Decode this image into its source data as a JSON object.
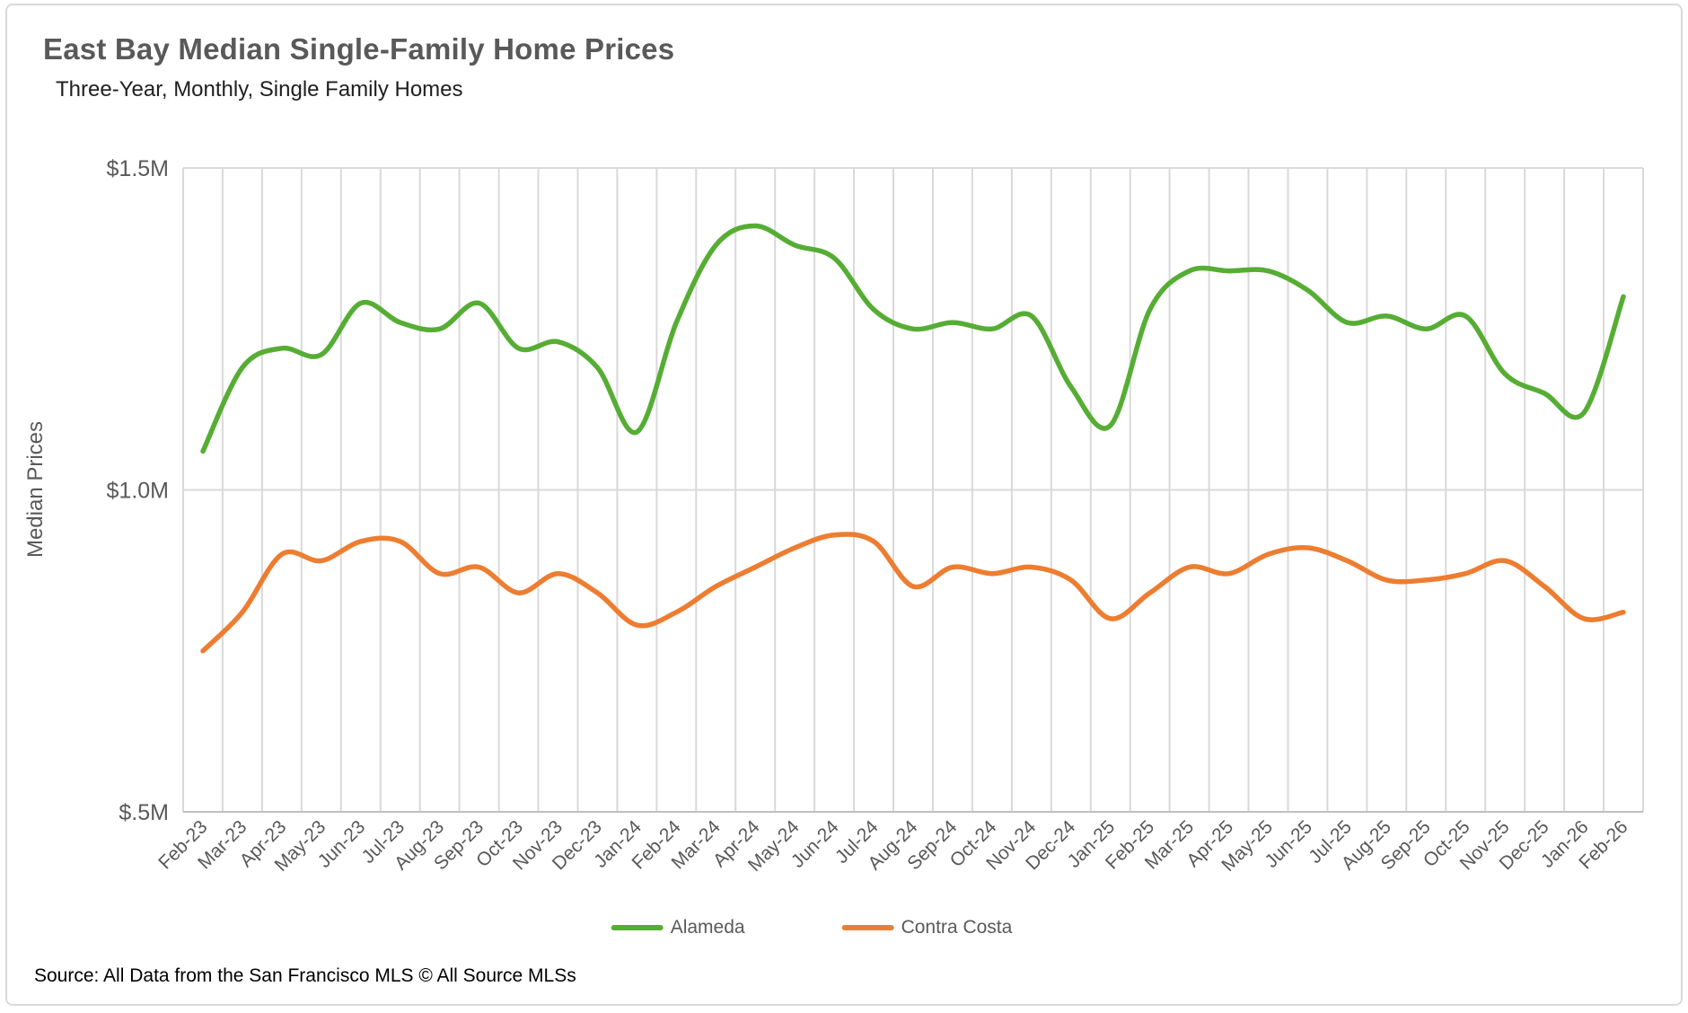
{
  "header": {
    "title": "East Bay Median Single-Family Home Prices",
    "subtitle": "Three-Year, Monthly, Single Family Homes"
  },
  "chart_data": {
    "type": "line",
    "smoothed": true,
    "title": "East Bay Median Single-Family Home Prices",
    "subtitle": "Three-Year, Monthly, Single Family Homes",
    "ylabel": "Median Prices",
    "units": "$M",
    "ylim": [
      0.5,
      1.5
    ],
    "grid": "vertical-and-horizontal",
    "legend_position": "bottom-center",
    "y_ticks": [
      {
        "label": "$1.5M",
        "value": 1.5
      },
      {
        "label": "$1.0M",
        "value": 1.0
      },
      {
        "label": "$.5M",
        "value": 0.5
      }
    ],
    "x_labels": [
      "Feb-23",
      "Mar-23",
      "Apr-23",
      "May-23",
      "Jun-23",
      "Jul-23",
      "Aug-23",
      "Sep-23",
      "Oct-23",
      "Nov-23",
      "Dec-23",
      "Jan-24",
      "Feb-24",
      "Mar-24",
      "Apr-24",
      "May-24",
      "Jun-24",
      "Jul-24",
      "Aug-24",
      "Sep-24",
      "Oct-24",
      "Nov-24",
      "Dec-24",
      "Jan-25",
      "Feb-25",
      "Mar-25",
      "Apr-25",
      "May-25",
      "Jun-25",
      "Jul-25",
      "Aug-25",
      "Sep-25",
      "Oct-25",
      "Nov-25",
      "Dec-25",
      "Jan-26",
      "Feb-26"
    ],
    "series": [
      {
        "name": "Alameda",
        "color": "#56ad34",
        "values": [
          1.06,
          1.19,
          1.22,
          1.21,
          1.29,
          1.26,
          1.25,
          1.29,
          1.22,
          1.23,
          1.19,
          1.09,
          1.26,
          1.38,
          1.41,
          1.38,
          1.36,
          1.28,
          1.25,
          1.26,
          1.25,
          1.27,
          1.16,
          1.1,
          1.28,
          1.34,
          1.34,
          1.34,
          1.31,
          1.26,
          1.27,
          1.25,
          1.27,
          1.18,
          1.15,
          1.12,
          1.3
        ]
      },
      {
        "name": "Contra Costa",
        "color": "#ed7d31",
        "values": [
          0.75,
          0.81,
          0.9,
          0.89,
          0.92,
          0.92,
          0.87,
          0.88,
          0.84,
          0.87,
          0.84,
          0.79,
          0.81,
          0.85,
          0.88,
          0.91,
          0.93,
          0.92,
          0.85,
          0.88,
          0.87,
          0.88,
          0.86,
          0.8,
          0.84,
          0.88,
          0.87,
          0.9,
          0.91,
          0.89,
          0.86,
          0.86,
          0.87,
          0.89,
          0.85,
          0.8,
          0.81
        ]
      }
    ]
  },
  "footer": {
    "source": "Source: All Data from the San Francisco MLS © All Source MLSs"
  }
}
